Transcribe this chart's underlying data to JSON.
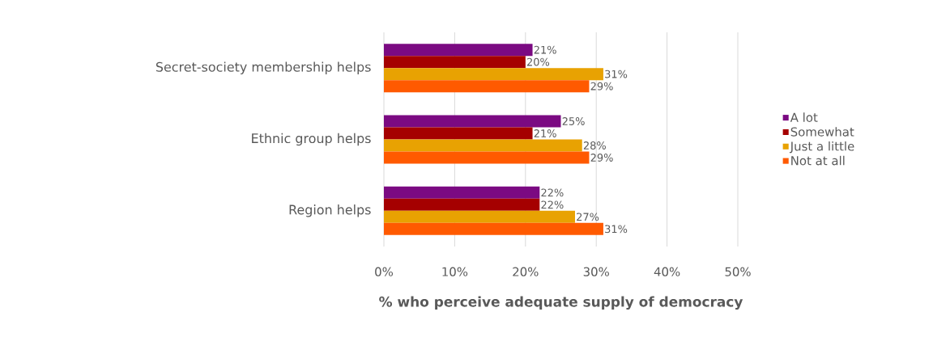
{
  "chart_data": {
    "type": "bar",
    "orientation": "horizontal",
    "xlabel": "% who perceive adequate supply of democracy",
    "categories": [
      "Secret-society membership helps",
      "Ethnic group helps",
      "Region helps"
    ],
    "series": [
      {
        "name": "A lot",
        "color": "#7b0a82",
        "values": [
          21,
          25,
          22
        ],
        "value_labels": [
          "21%",
          "25%",
          "22%"
        ]
      },
      {
        "name": "Somewhat",
        "color": "#a50000",
        "values": [
          20,
          21,
          22
        ],
        "value_labels": [
          "20%",
          "21%",
          "22%"
        ]
      },
      {
        "name": "Just a little",
        "color": "#e8a202",
        "values": [
          31,
          28,
          27
        ],
        "value_labels": [
          "31%",
          "28%",
          "27%"
        ]
      },
      {
        "name": "Not at all",
        "color": "#ff5a00",
        "values": [
          29,
          29,
          31
        ],
        "value_labels": [
          "29%",
          "29%",
          "31%"
        ]
      }
    ],
    "xlim": [
      0,
      50
    ],
    "xticks": [
      {
        "value": 0,
        "label": "0%"
      },
      {
        "value": 10,
        "label": "10%"
      },
      {
        "value": 20,
        "label": "20%"
      },
      {
        "value": 30,
        "label": "30%"
      },
      {
        "value": 40,
        "label": "40%"
      },
      {
        "value": 50,
        "label": "50%"
      }
    ],
    "grid": "x",
    "legend": "right"
  }
}
